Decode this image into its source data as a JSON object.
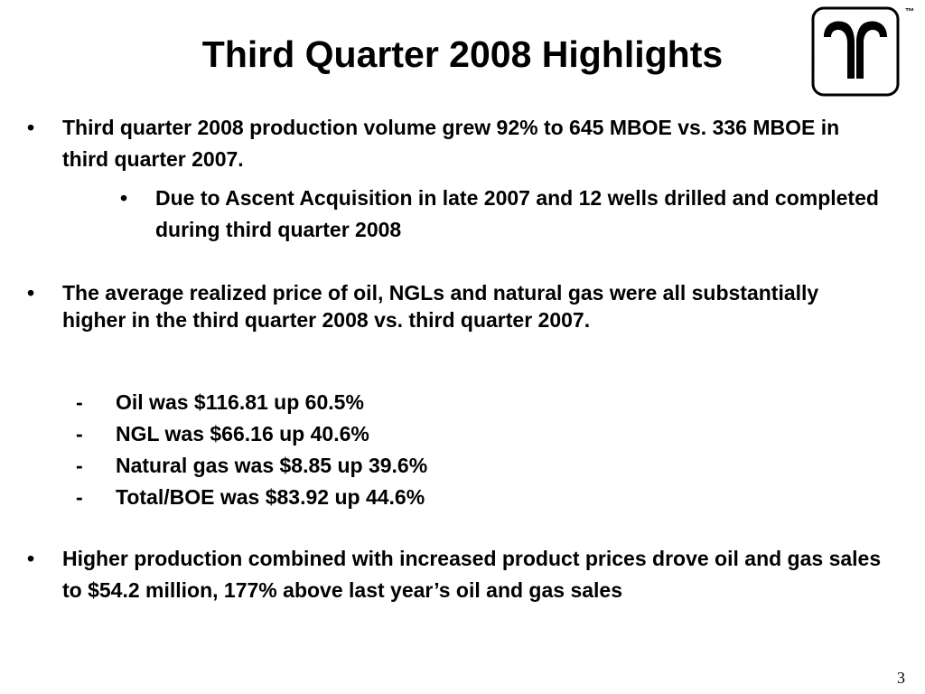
{
  "slide": {
    "title": "Third Quarter 2008 Highlights",
    "trademark": "™",
    "page_number": "3"
  },
  "bullets": {
    "marker": "•",
    "item1": "Third quarter 2008 production volume grew 92% to 645 MBOE vs. 336 MBOE in third quarter 2007.",
    "item1_sub": "Due to Ascent Acquisition in late 2007 and 12 wells drilled and completed during third quarter 2008",
    "item2": "The average realized price of oil, NGLs and natural gas were all substantially higher in the third quarter 2008 vs. third quarter 2007.",
    "item3": "Higher production combined with increased product prices drove oil and gas sales to $54.2 million, 177% above last year’s oil and gas sales"
  },
  "price_list": {
    "marker": "-",
    "items": [
      "Oil was $116.81 up 60.5%",
      "NGL was $66.16 up 40.6%",
      "Natural gas was $8.85 up 39.6%",
      "Total/BOE was $83.92 up 44.6%"
    ]
  },
  "logo": {
    "icon": "company-logo-icon",
    "color": "#000000"
  }
}
